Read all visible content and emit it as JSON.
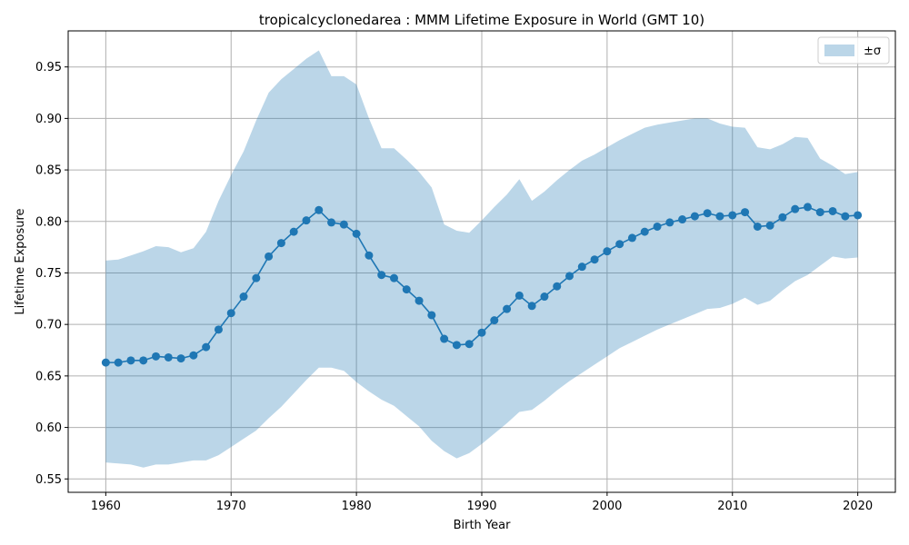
{
  "chart_data": {
    "type": "line",
    "title": "tropicalcyclonedarea : MMM Lifetime Exposure in World (GMT 10)",
    "xlabel": "Birth Year",
    "ylabel": "Lifetime Exposure",
    "xlim": [
      1957,
      2023
    ],
    "ylim": [
      0.537,
      0.985
    ],
    "xticks": [
      1960,
      1970,
      1980,
      1990,
      2000,
      2010,
      2020
    ],
    "yticks": [
      0.55,
      0.6,
      0.65,
      0.7,
      0.75,
      0.8,
      0.85,
      0.9,
      0.95
    ],
    "grid": true,
    "legend_position": "top-right",
    "line_color": "#1f77b4",
    "band_color": "#1f77b4",
    "x": [
      1960,
      1961,
      1962,
      1963,
      1964,
      1965,
      1966,
      1967,
      1968,
      1969,
      1970,
      1971,
      1972,
      1973,
      1974,
      1975,
      1976,
      1977,
      1978,
      1979,
      1980,
      1981,
      1982,
      1983,
      1984,
      1985,
      1986,
      1987,
      1988,
      1989,
      1990,
      1991,
      1992,
      1993,
      1994,
      1995,
      1996,
      1997,
      1998,
      1999,
      2000,
      2001,
      2002,
      2003,
      2004,
      2005,
      2006,
      2007,
      2008,
      2009,
      2010,
      2011,
      2012,
      2013,
      2014,
      2015,
      2016,
      2017,
      2018,
      2019,
      2020
    ],
    "series": [
      {
        "values": [
          0.663,
          0.663,
          0.665,
          0.665,
          0.669,
          0.668,
          0.667,
          0.67,
          0.678,
          0.695,
          0.711,
          0.727,
          0.745,
          0.766,
          0.779,
          0.79,
          0.801,
          0.811,
          0.799,
          0.797,
          0.788,
          0.767,
          0.748,
          0.745,
          0.734,
          0.723,
          0.709,
          0.686,
          0.68,
          0.681,
          0.692,
          0.704,
          0.715,
          0.728,
          0.718,
          0.727,
          0.737,
          0.747,
          0.756,
          0.763,
          0.771,
          0.778,
          0.784,
          0.79,
          0.795,
          0.799,
          0.802,
          0.805,
          0.808,
          0.805,
          0.806,
          0.809,
          0.795,
          0.796,
          0.804,
          0.812,
          0.814,
          0.809,
          0.81,
          0.805,
          0.806
        ]
      }
    ],
    "band": {
      "name": "±σ",
      "upper": [
        0.762,
        0.763,
        0.767,
        0.771,
        0.776,
        0.775,
        0.77,
        0.774,
        0.79,
        0.82,
        0.845,
        0.868,
        0.898,
        0.925,
        0.938,
        0.948,
        0.958,
        0.966,
        0.941,
        0.941,
        0.933,
        0.9,
        0.871,
        0.871,
        0.86,
        0.848,
        0.833,
        0.797,
        0.791,
        0.789,
        0.801,
        0.814,
        0.826,
        0.841,
        0.82,
        0.829,
        0.84,
        0.85,
        0.859,
        0.865,
        0.872,
        0.879,
        0.885,
        0.891,
        0.894,
        0.896,
        0.898,
        0.9,
        0.9,
        0.895,
        0.892,
        0.891,
        0.872,
        0.87,
        0.875,
        0.882,
        0.881,
        0.861,
        0.854,
        0.846,
        0.848
      ],
      "lower": [
        0.566,
        0.565,
        0.564,
        0.561,
        0.564,
        0.564,
        0.566,
        0.568,
        0.568,
        0.573,
        0.581,
        0.589,
        0.597,
        0.609,
        0.62,
        0.633,
        0.646,
        0.658,
        0.658,
        0.655,
        0.644,
        0.635,
        0.627,
        0.621,
        0.611,
        0.601,
        0.587,
        0.577,
        0.57,
        0.575,
        0.584,
        0.594,
        0.604,
        0.615,
        0.617,
        0.626,
        0.636,
        0.645,
        0.653,
        0.661,
        0.669,
        0.677,
        0.683,
        0.689,
        0.695,
        0.7,
        0.705,
        0.71,
        0.715,
        0.716,
        0.72,
        0.726,
        0.719,
        0.723,
        0.733,
        0.742,
        0.748,
        0.757,
        0.766,
        0.764,
        0.765
      ]
    }
  }
}
